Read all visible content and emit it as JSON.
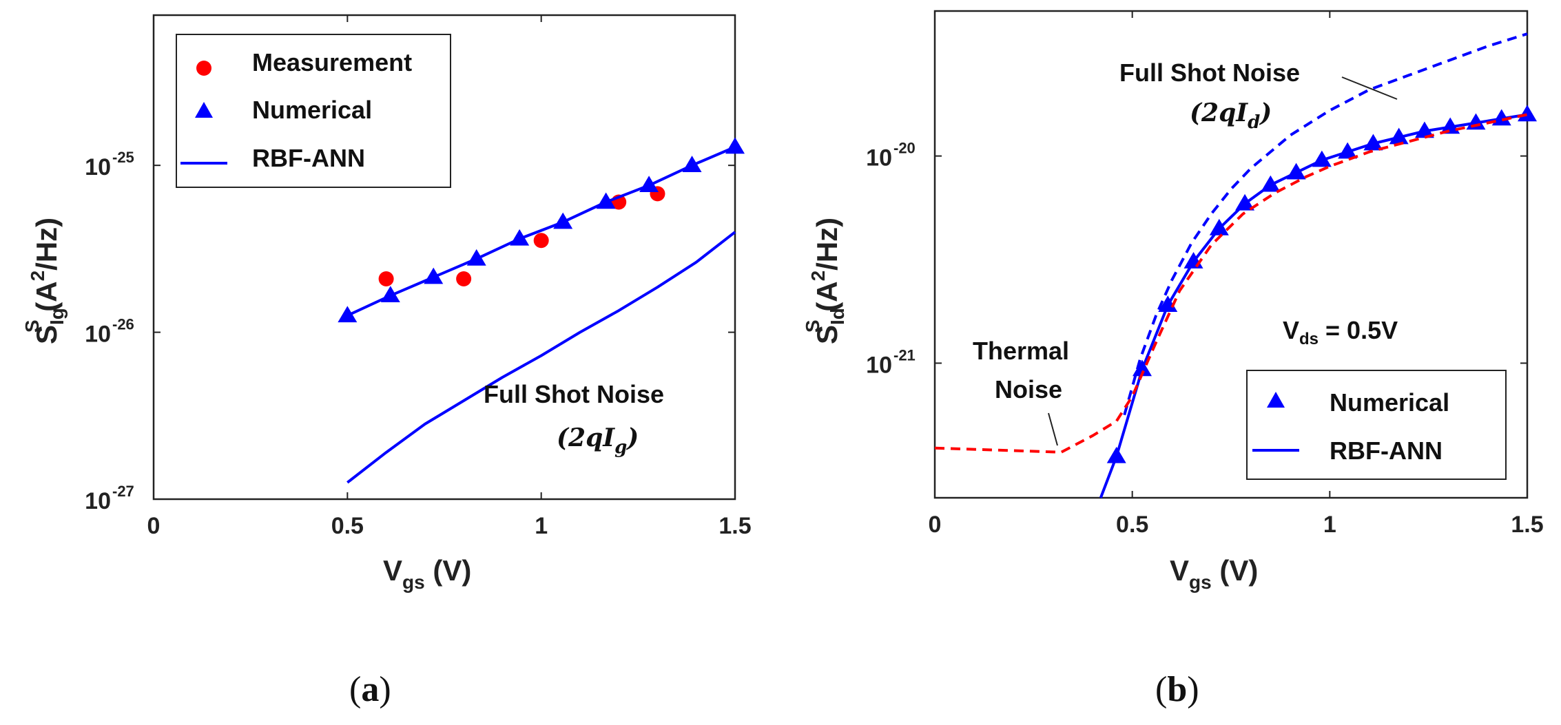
{
  "chart_data": [
    {
      "type": "line",
      "panel_label": "a",
      "xlabel": {
        "main": "V",
        "sub": "gs",
        "unit": " (V)"
      },
      "ylabel": {
        "main": "S",
        "sub": "Ig",
        "sup": "S",
        "unit_pre": " (A",
        "unit_sup": "2",
        "unit_post": "/Hz)"
      },
      "xlim": [
        0,
        1.5
      ],
      "ylim_log10": [
        -27,
        -24.1
      ],
      "y_scale": "log",
      "xticks": [
        "0",
        "0.5",
        "1",
        "1.5"
      ],
      "yticks": [
        {
          "value_log10": -27,
          "base": "10",
          "exp": "-27"
        },
        {
          "value_log10": -26,
          "base": "10",
          "exp": "-26"
        },
        {
          "value_log10": -25,
          "base": "10",
          "exp": "-25"
        }
      ],
      "legend_position": "top-left",
      "legend": [
        "Measurement",
        "Numerical",
        "RBF-ANN"
      ],
      "series": [
        {
          "name": "Measurement",
          "kind": "scatter",
          "marker": "circle",
          "color": "#ff0000",
          "x": [
            0.6,
            0.8,
            1.0,
            1.2,
            1.3
          ],
          "y_log10": [
            -25.68,
            -25.68,
            -25.45,
            -25.22,
            -25.17
          ]
        },
        {
          "name": "Numerical",
          "kind": "scatter",
          "marker": "triangle",
          "color": "#0000ff",
          "x": [
            0.5,
            0.611,
            0.722,
            0.833,
            0.944,
            1.056,
            1.167,
            1.278,
            1.389,
            1.5
          ],
          "y_log10": [
            -25.9,
            -25.78,
            -25.67,
            -25.56,
            -25.44,
            -25.34,
            -25.22,
            -25.12,
            -25.0,
            -24.89
          ]
        },
        {
          "name": "RBF-ANN",
          "kind": "line",
          "color": "#0000ff",
          "dash": "solid",
          "x": [
            0.5,
            0.611,
            0.722,
            0.833,
            0.944,
            1.056,
            1.167,
            1.278,
            1.389,
            1.5
          ],
          "y_log10": [
            -25.9,
            -25.78,
            -25.67,
            -25.56,
            -25.44,
            -25.34,
            -25.22,
            -25.12,
            -25.0,
            -24.89
          ]
        },
        {
          "kind": "line",
          "color": "#0000ff",
          "dash": "solid",
          "x": [
            0.5,
            0.6,
            0.7,
            0.8,
            0.9,
            1.0,
            1.1,
            1.2,
            1.3,
            1.4,
            1.5
          ],
          "y_log10": [
            -26.9,
            -26.72,
            -26.55,
            -26.41,
            -26.27,
            -26.14,
            -26.0,
            -25.87,
            -25.73,
            -25.58,
            -25.4
          ]
        }
      ],
      "annotations": [
        {
          "text": "Full Shot Noise",
          "math": "(2qI",
          "math_sub": "g",
          "math_close": ")"
        }
      ]
    },
    {
      "type": "line",
      "panel_label": "b",
      "xlabel": {
        "main": "V",
        "sub": "gs",
        "unit": " (V)"
      },
      "ylabel": {
        "main": "S",
        "sub": "Id",
        "sup": "S",
        "unit_pre": " (A",
        "unit_sup": "2",
        "unit_post": "/Hz)"
      },
      "xlim": [
        0,
        1.5
      ],
      "ylim_log10": [
        -21.65,
        -19.3
      ],
      "y_scale": "log",
      "xticks": [
        "0",
        "0.5",
        "1",
        "1.5"
      ],
      "yticks": [
        {
          "value_log10": -21,
          "base": "10",
          "exp": "-21"
        },
        {
          "value_log10": -20,
          "base": "10",
          "exp": "-20"
        }
      ],
      "legend_position": "bottom-right",
      "legend": [
        "Numerical",
        "RBF-ANN"
      ],
      "series": [
        {
          "name": "Numerical",
          "kind": "scatter",
          "marker": "triangle",
          "color": "#0000ff",
          "x": [
            0.46,
            0.525,
            0.59,
            0.655,
            0.72,
            0.785,
            0.85,
            0.915,
            0.98,
            1.045,
            1.11,
            1.175,
            1.24,
            1.305,
            1.37,
            1.435,
            1.5
          ],
          "y_log10": [
            -21.45,
            -21.03,
            -20.72,
            -20.51,
            -20.35,
            -20.23,
            -20.14,
            -20.08,
            -20.02,
            -19.98,
            -19.94,
            -19.91,
            -19.88,
            -19.86,
            -19.84,
            -19.82,
            -19.8
          ]
        },
        {
          "name": "RBF-ANN",
          "kind": "line",
          "color": "#0000ff",
          "dash": "solid",
          "x": [
            0.42,
            0.46,
            0.525,
            0.59,
            0.655,
            0.72,
            0.785,
            0.85,
            0.915,
            0.98,
            1.045,
            1.11,
            1.175,
            1.24,
            1.305,
            1.37,
            1.435,
            1.5
          ],
          "y_log10": [
            -21.65,
            -21.45,
            -21.03,
            -20.72,
            -20.51,
            -20.35,
            -20.23,
            -20.14,
            -20.08,
            -20.02,
            -19.98,
            -19.94,
            -19.91,
            -19.88,
            -19.86,
            -19.84,
            -19.82,
            -19.8
          ]
        },
        {
          "kind": "line",
          "color": "#0000ff",
          "dash": "dashed",
          "x": [
            0.48,
            0.52,
            0.56,
            0.6,
            0.65,
            0.7,
            0.75,
            0.8,
            0.85,
            0.9,
            1.0,
            1.1,
            1.2,
            1.3,
            1.4,
            1.5
          ],
          "y_log10": [
            -21.25,
            -20.98,
            -20.77,
            -20.6,
            -20.42,
            -20.28,
            -20.16,
            -20.06,
            -19.98,
            -19.9,
            -19.78,
            -19.68,
            -19.61,
            -19.54,
            -19.47,
            -19.41
          ]
        },
        {
          "kind": "line",
          "color": "#ff0000",
          "dash": "dashed",
          "x": [
            0.0,
            0.32,
            0.4,
            0.46,
            0.5,
            0.56,
            0.62,
            0.7,
            0.78,
            0.86,
            0.94,
            1.0,
            1.1,
            1.2,
            1.3,
            1.4,
            1.5
          ],
          "y_log10": [
            -21.41,
            -21.43,
            -21.35,
            -21.28,
            -21.16,
            -20.9,
            -20.65,
            -20.43,
            -20.28,
            -20.18,
            -20.1,
            -20.05,
            -19.98,
            -19.93,
            -19.88,
            -19.84,
            -19.8
          ]
        }
      ],
      "annotations": [
        {
          "text": "Full Shot Noise",
          "math": "(2qI",
          "math_sub": "d",
          "math_close": ")"
        },
        {
          "text": "Thermal",
          "text2": "Noise"
        },
        {
          "text": "V",
          "sub": "ds",
          "value": " =  0.5V"
        }
      ]
    }
  ]
}
